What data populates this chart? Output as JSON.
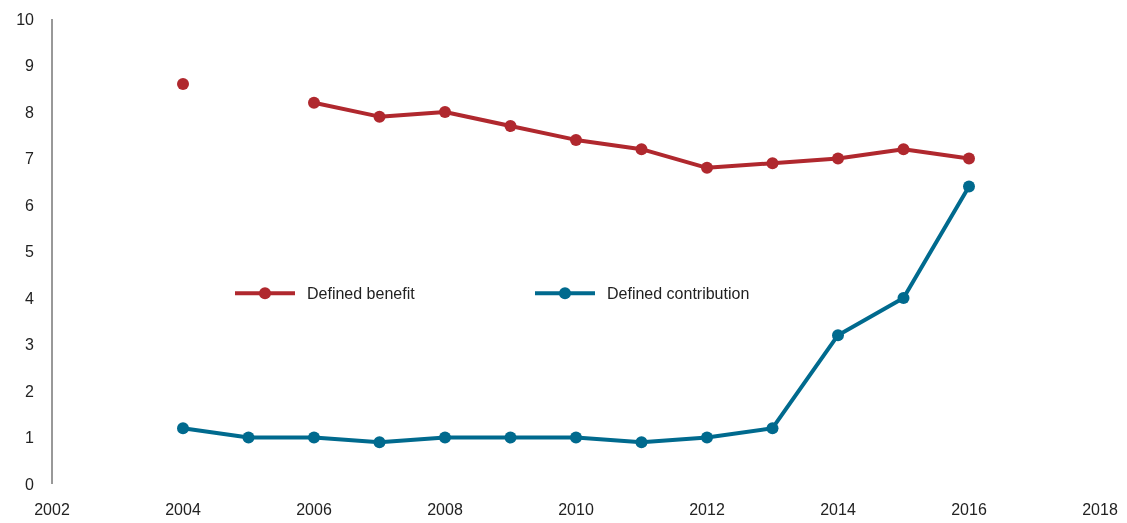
{
  "chart_data": {
    "type": "line",
    "x": [
      2004,
      2005,
      2006,
      2007,
      2008,
      2009,
      2010,
      2011,
      2012,
      2013,
      2014,
      2015,
      2016
    ],
    "series": [
      {
        "name": "Defined benefit",
        "color": "#b0282e",
        "values": [
          8.6,
          null,
          8.2,
          7.9,
          8.0,
          7.7,
          7.4,
          7.2,
          6.8,
          6.9,
          7.0,
          7.2,
          7.0
        ]
      },
      {
        "name": "Defined contribution",
        "color": "#006a8e",
        "values": [
          1.2,
          1.0,
          1.0,
          0.9,
          1.0,
          1.0,
          1.0,
          0.9,
          1.0,
          1.2,
          3.2,
          4.0,
          6.4
        ]
      }
    ],
    "xlim": [
      2002,
      2018
    ],
    "xticks": [
      2002,
      2004,
      2006,
      2008,
      2010,
      2012,
      2014,
      2016,
      2018
    ],
    "ylim": [
      0,
      10
    ],
    "yticks": [
      0,
      1,
      2,
      3,
      4,
      5,
      6,
      7,
      8,
      9,
      10
    ],
    "marker": "circle",
    "legend": "left",
    "grid": false
  }
}
